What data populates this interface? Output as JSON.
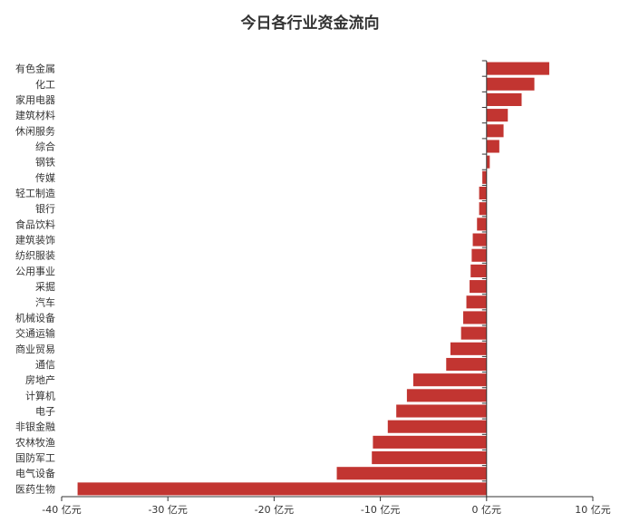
{
  "chart_data": {
    "type": "bar",
    "orientation": "horizontal",
    "title": "今日各行业资金流向",
    "xlabel": "",
    "ylabel": "",
    "xlim": [
      -40,
      10
    ],
    "x_ticks": [
      -40,
      -30,
      -20,
      -10,
      0,
      10
    ],
    "x_tick_labels": [
      "-40 亿元",
      "-30 亿元",
      "-20 亿元",
      "-10 亿元",
      "0 亿元",
      "10 亿元"
    ],
    "grid": false,
    "bar_color": "#c23531",
    "categories": [
      "有色金属",
      "化工",
      "家用电器",
      "建筑材料",
      "休闲服务",
      "综合",
      "钢铁",
      "传媒",
      "轻工制造",
      "银行",
      "食品饮料",
      "建筑装饰",
      "纺织服装",
      "公用事业",
      "采掘",
      "汽车",
      "机械设备",
      "交通运输",
      "商业贸易",
      "通信",
      "房地产",
      "计算机",
      "电子",
      "非银金融",
      "农林牧渔",
      "国防军工",
      "电气设备",
      "医药生物"
    ],
    "values": [
      5.9,
      4.5,
      3.3,
      2.0,
      1.6,
      1.2,
      0.3,
      -0.4,
      -0.7,
      -0.7,
      -0.9,
      -1.3,
      -1.4,
      -1.5,
      -1.6,
      -1.9,
      -2.2,
      -2.4,
      -3.4,
      -3.8,
      -6.9,
      -7.5,
      -8.5,
      -9.3,
      -10.7,
      -10.8,
      -14.1,
      -38.5
    ]
  }
}
